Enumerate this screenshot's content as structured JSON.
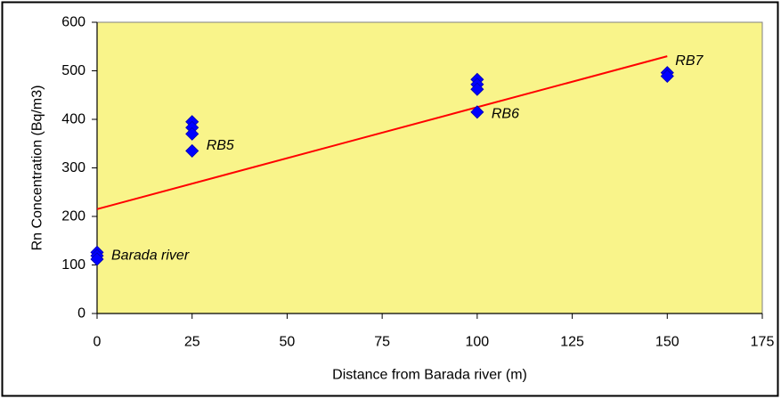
{
  "chart_data": {
    "type": "scatter",
    "xlabel": "Distance from Barada river (m)",
    "ylabel": "Rn Concentration (Bq/m3)",
    "xlim": [
      0,
      175
    ],
    "ylim": [
      0,
      600
    ],
    "x_ticks": [
      "0",
      "25",
      "50",
      "75",
      "100",
      "125",
      "150",
      "175"
    ],
    "y_ticks": [
      "0",
      "100",
      "200",
      "300",
      "400",
      "500",
      "600"
    ],
    "grid": false,
    "legend": "none",
    "plot_background": "#F9F48A",
    "series": [
      {
        "marker": "diamond",
        "color": "#0000FF",
        "x": [
          0,
          0,
          0,
          25,
          25,
          25,
          25,
          100,
          100,
          100,
          100,
          150,
          150
        ],
        "y": [
          126,
          119,
          112,
          395,
          383,
          370,
          335,
          482,
          472,
          462,
          415,
          496,
          489
        ]
      }
    ],
    "point_labels": [
      {
        "text": "Barada river",
        "x": 0,
        "y": 119
      },
      {
        "text": "RB5",
        "x": 25,
        "y": 335
      },
      {
        "text": "RB6",
        "x": 100,
        "y": 415
      },
      {
        "text": "RB7",
        "x": 150,
        "y": 496
      }
    ],
    "trendline": {
      "color": "#FF0000",
      "x": [
        0,
        150
      ],
      "y": [
        215,
        530
      ]
    }
  }
}
